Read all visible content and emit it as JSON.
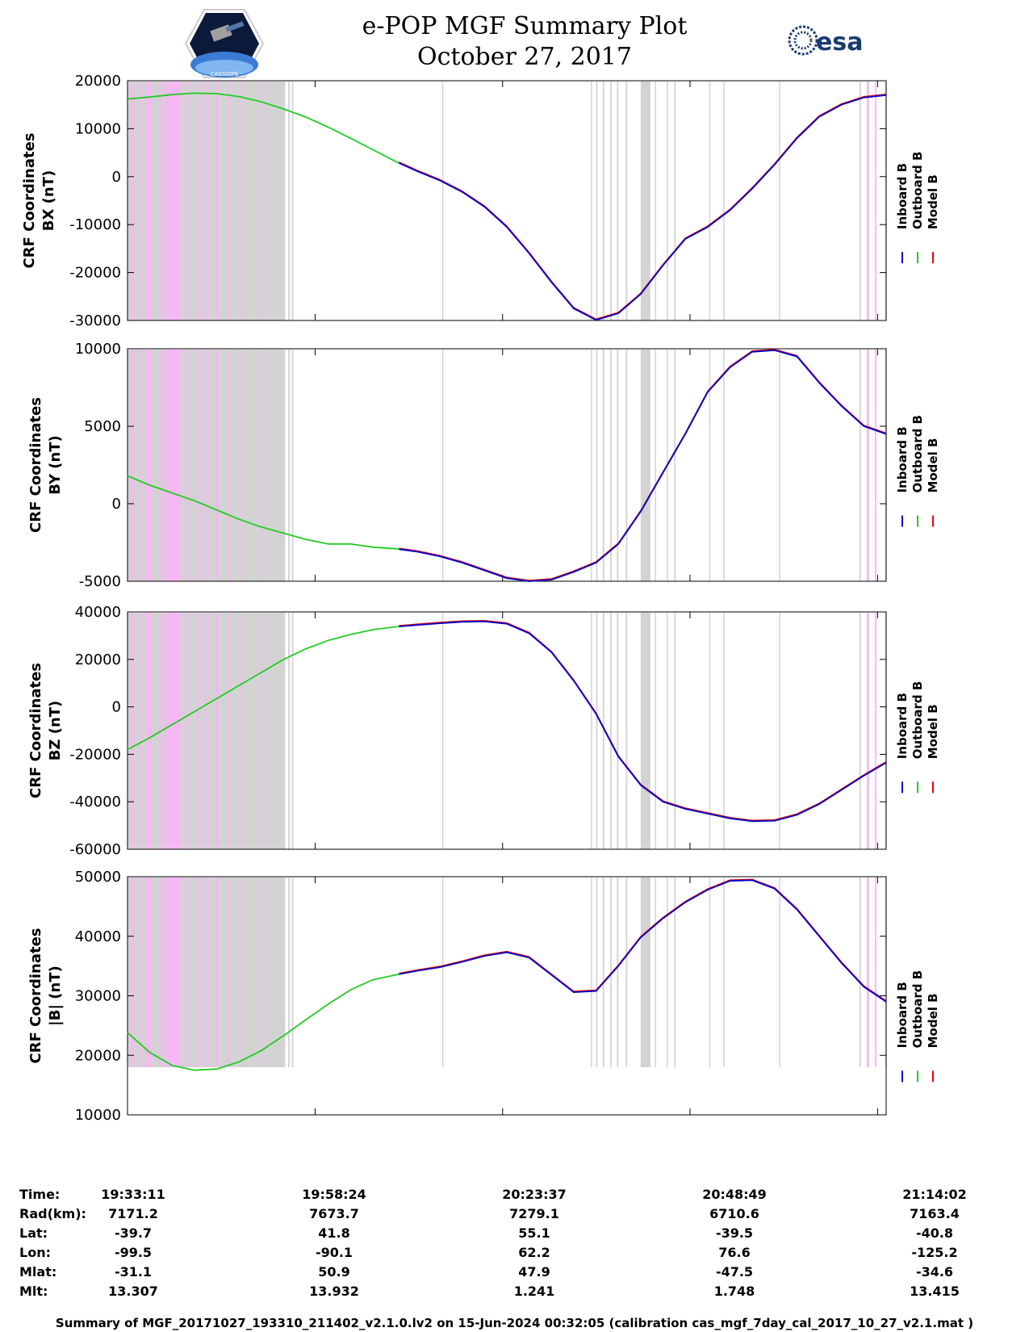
{
  "header": {
    "title_line1": "e-POP MGF Summary Plot",
    "title_line2": "October 27, 2017",
    "mission_logo": "cassiope-mission-logo",
    "agency_logo_text": "esa"
  },
  "colors": {
    "inboard": "#0000cc",
    "outboard": "#22cc22",
    "model": "#ee0000",
    "flag_grey": "#d3d3d3",
    "flag_pink": "#f5b8f2"
  },
  "legend": [
    "Inboard B",
    "Outboard B",
    "Model B"
  ],
  "chart_data": [
    {
      "type": "line",
      "ylabel_line1": "CRF Coordinates",
      "ylabel_line2": "BX (nT)",
      "ylim": [
        -30000,
        20000
      ],
      "yticks": [
        -30000,
        -20000,
        -10000,
        0,
        10000,
        20000
      ],
      "x_minutes": [
        0,
        3,
        6,
        9,
        12,
        15,
        18,
        21,
        24,
        27,
        30,
        33,
        36,
        39,
        42,
        45,
        48,
        51,
        54,
        57,
        60,
        63,
        66,
        69,
        72,
        75,
        78,
        81,
        84,
        87,
        90,
        93,
        96,
        99,
        102
      ],
      "values": [
        16200,
        16600,
        17100,
        17400,
        17300,
        16700,
        15600,
        14100,
        12400,
        10300,
        8000,
        5600,
        3200,
        1100,
        -800,
        -3200,
        -6300,
        -10500,
        -16000,
        -22000,
        -27500,
        -29900,
        -28500,
        -24500,
        -18500,
        -13000,
        -10500,
        -7000,
        -2500,
        2500,
        8000,
        12500,
        15000,
        16500,
        17000
      ],
      "inboard_start_minute": 36.5,
      "model_diff_at": []
    },
    {
      "type": "line",
      "ylabel_line1": "CRF Coordinates",
      "ylabel_line2": "BY (nT)",
      "ylim": [
        -5000,
        10000
      ],
      "yticks": [
        -5000,
        0,
        5000,
        10000
      ],
      "x_minutes": [
        0,
        3,
        6,
        9,
        12,
        15,
        18,
        21,
        24,
        27,
        30,
        33,
        36,
        39,
        42,
        45,
        48,
        51,
        54,
        57,
        60,
        63,
        66,
        69,
        72,
        75,
        78,
        81,
        84,
        87,
        90,
        93,
        96,
        99,
        102
      ],
      "values": [
        1800,
        1200,
        700,
        200,
        -400,
        -1000,
        -1500,
        -1900,
        -2300,
        -2600,
        -2600,
        -2800,
        -2900,
        -3100,
        -3400,
        -3800,
        -4300,
        -4800,
        -5000,
        -4900,
        -4400,
        -3800,
        -2600,
        -500,
        2000,
        4500,
        7200,
        8800,
        9800,
        9900,
        9500,
        7800,
        6300,
        5000,
        4500
      ],
      "inboard_start_minute": 36.5,
      "model_diff_at": [
        92.5
      ]
    },
    {
      "type": "line",
      "ylabel_line1": "CRF Coordinates",
      "ylabel_line2": "BZ (nT)",
      "ylim": [
        -60000,
        40000
      ],
      "yticks": [
        -60000,
        -40000,
        -20000,
        0,
        20000,
        40000
      ],
      "x_minutes": [
        0,
        3,
        6,
        9,
        12,
        15,
        18,
        21,
        24,
        27,
        30,
        33,
        36,
        39,
        42,
        45,
        48,
        51,
        54,
        57,
        60,
        63,
        66,
        69,
        72,
        75,
        78,
        81,
        84,
        87,
        90,
        93,
        96,
        99,
        102
      ],
      "values": [
        -18000,
        -13000,
        -7500,
        -2000,
        3500,
        9000,
        14500,
        20000,
        24500,
        28000,
        30500,
        32500,
        33700,
        34500,
        35200,
        35800,
        36000,
        35000,
        31000,
        23000,
        11000,
        -3000,
        -21000,
        -33000,
        -40000,
        -43000,
        -45000,
        -47000,
        -48200,
        -48000,
        -45500,
        -41000,
        -35000,
        -29000,
        -23500
      ],
      "inboard_start_minute": 36.5,
      "model_diff_at": []
    },
    {
      "type": "line",
      "ylabel_line1": "CRF Coordinates",
      "ylabel_line2": "|B| (nT)",
      "ylim": [
        10000,
        50000
      ],
      "yticks": [
        10000,
        20000,
        30000,
        40000,
        50000
      ],
      "x_minutes": [
        0,
        3,
        6,
        9,
        12,
        15,
        18,
        21,
        24,
        27,
        30,
        33,
        36,
        39,
        42,
        45,
        48,
        51,
        54,
        57,
        60,
        63,
        66,
        69,
        72,
        75,
        78,
        81,
        84,
        87,
        90,
        93,
        96,
        99,
        102
      ],
      "values": [
        23800,
        20500,
        18300,
        17500,
        17700,
        18900,
        20800,
        23300,
        26000,
        28600,
        31000,
        32700,
        33500,
        34200,
        34800,
        35700,
        36700,
        37300,
        36400,
        33500,
        30600,
        30800,
        35000,
        39800,
        43000,
        45700,
        47800,
        49300,
        49400,
        48000,
        44500,
        40000,
        35500,
        31500,
        29000
      ],
      "inboard_start_minute": 36.5,
      "model_diff_at": []
    }
  ],
  "x_axis": {
    "xlim_minutes": [
      0,
      102
    ],
    "tick_minutes": [
      0,
      25.22,
      50.43,
      75.63,
      100.85
    ]
  },
  "flags": {
    "grey_bands_minutes": [
      [
        0,
        21.2
      ],
      [
        21.6,
        21.8
      ],
      [
        22.1,
        22.3
      ],
      [
        42.3,
        42.45
      ],
      [
        62.3,
        62.45
      ],
      [
        63.0,
        63.2
      ],
      [
        63.9,
        64.1
      ],
      [
        64.9,
        65.1
      ],
      [
        65.8,
        66.0
      ],
      [
        67.0,
        67.2
      ],
      [
        69.0,
        70.3
      ],
      [
        70.9,
        71.05
      ],
      [
        72.5,
        72.65
      ],
      [
        73.5,
        73.7
      ],
      [
        78.2,
        78.35
      ],
      [
        80.1,
        80.25
      ],
      [
        87.6,
        87.75
      ],
      [
        98.4,
        98.6
      ],
      [
        101.9,
        102
      ]
    ],
    "pink_bands_minutes": [
      [
        0.4,
        0.8
      ],
      [
        1.6,
        1.8
      ],
      [
        2.5,
        3.2
      ],
      [
        4.2,
        4.5
      ],
      [
        5.0,
        7.2
      ],
      [
        8.0,
        8.3
      ],
      [
        9.3,
        9.6
      ],
      [
        10.4,
        10.7
      ],
      [
        11.8,
        12.2
      ],
      [
        13.5,
        13.7
      ],
      [
        15.2,
        15.4
      ],
      [
        17.9,
        18.1
      ],
      [
        99.4,
        99.7
      ],
      [
        100.5,
        100.7
      ]
    ]
  },
  "footer": {
    "row_labels": [
      "Time:",
      "Rad(km):",
      "Lat:",
      "Lon:",
      "Mlat:",
      "Mlt:"
    ],
    "columns": [
      {
        "time": "19:33:11",
        "rad": "7171.2",
        "lat": "-39.7",
        "lon": "-99.5",
        "mlat": "-31.1",
        "mlt": "13.307"
      },
      {
        "time": "19:58:24",
        "rad": "7673.7",
        "lat": "41.8",
        "lon": "-90.1",
        "mlat": "50.9",
        "mlt": "13.932"
      },
      {
        "time": "20:23:37",
        "rad": "7279.1",
        "lat": "55.1",
        "lon": "62.2",
        "mlat": "47.9",
        "mlt": "1.241"
      },
      {
        "time": "20:48:49",
        "rad": "6710.6",
        "lat": "-39.5",
        "lon": "76.6",
        "mlat": "-47.5",
        "mlt": "1.748"
      },
      {
        "time": "21:14:02",
        "rad": "7163.4",
        "lat": "-40.8",
        "lon": "-125.2",
        "mlat": "-34.6",
        "mlt": "13.415"
      }
    ],
    "caption": "Summary of MGF_20171027_193310_211402_v2.1.0.lv2 on 15-Jun-2024 00:32:05 (calibration cas_mgf_7day_cal_2017_10_27_v2.1.mat )"
  }
}
